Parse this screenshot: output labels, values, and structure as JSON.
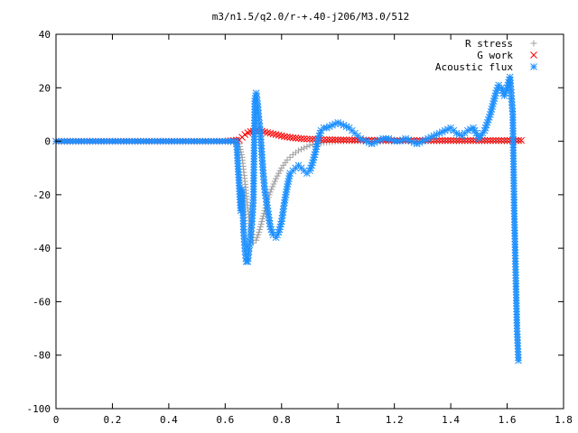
{
  "chart_data": {
    "type": "scatter",
    "title": "m3/n1.5/q2.0/r-+.40-j206/M3.0/512",
    "xlabel": "",
    "ylabel": "",
    "xlim": [
      0,
      1.8
    ],
    "ylim": [
      -100,
      40
    ],
    "xticks": [
      "0",
      "0.2",
      "0.4",
      "0.6",
      "0.8",
      "1",
      "1.2",
      "1.4",
      "1.6",
      "1.8"
    ],
    "yticks": [
      "40",
      "20",
      "0",
      "-20",
      "-40",
      "-60",
      "-80",
      "-100"
    ],
    "grid": false,
    "legend_position": "top-right",
    "series": [
      {
        "name": "R stress",
        "marker": "plus",
        "color": "#a0a0a0",
        "x": [
          0.0,
          0.1,
          0.2,
          0.3,
          0.4,
          0.5,
          0.6,
          0.65,
          0.66,
          0.67,
          0.68,
          0.69,
          0.7,
          0.71,
          0.72,
          0.73,
          0.74,
          0.75,
          0.76,
          0.78,
          0.8,
          0.82,
          0.84,
          0.86,
          0.88,
          0.9,
          0.92,
          0.95,
          1.0,
          1.1,
          1.2,
          1.3,
          1.4,
          1.5,
          1.6,
          1.65
        ],
        "y": [
          0,
          0,
          0,
          0,
          0,
          0,
          0,
          -1,
          -6,
          -15,
          -25,
          -33,
          -38,
          -37,
          -34,
          -30,
          -26,
          -22,
          -19,
          -14,
          -10,
          -7,
          -5,
          -3.5,
          -2.5,
          -1.5,
          -1,
          -0.5,
          0,
          0,
          0,
          0,
          0,
          0,
          0,
          0
        ]
      },
      {
        "name": "G work",
        "marker": "cross",
        "color": "#ff0000",
        "x": [
          0.0,
          0.1,
          0.2,
          0.3,
          0.4,
          0.5,
          0.6,
          0.65,
          0.66,
          0.67,
          0.68,
          0.69,
          0.7,
          0.71,
          0.72,
          0.73,
          0.74,
          0.76,
          0.78,
          0.8,
          0.82,
          0.84,
          0.86,
          0.88,
          0.9,
          0.92,
          0.95,
          1.0,
          1.1,
          1.2,
          1.3,
          1.4,
          1.5,
          1.6,
          1.65
        ],
        "y": [
          0,
          0,
          0,
          0,
          0,
          0,
          0,
          0.5,
          1.5,
          2.5,
          3.2,
          3.6,
          3.8,
          4.0,
          4.0,
          3.8,
          3.5,
          3.0,
          2.5,
          2.0,
          1.6,
          1.3,
          1.1,
          0.9,
          0.8,
          0.7,
          0.6,
          0.5,
          0.4,
          0.3,
          0.3,
          0.3,
          0.3,
          0.3,
          0.3
        ]
      },
      {
        "name": "Acoustic flux",
        "marker": "star",
        "color": "#1e90ff",
        "x": [
          0.0,
          0.05,
          0.1,
          0.15,
          0.2,
          0.25,
          0.3,
          0.35,
          0.4,
          0.45,
          0.5,
          0.55,
          0.6,
          0.64,
          0.655,
          0.66,
          0.665,
          0.67,
          0.675,
          0.68,
          0.685,
          0.69,
          0.695,
          0.7,
          0.705,
          0.71,
          0.715,
          0.72,
          0.725,
          0.73,
          0.735,
          0.74,
          0.75,
          0.76,
          0.77,
          0.78,
          0.79,
          0.8,
          0.81,
          0.82,
          0.83,
          0.84,
          0.85,
          0.86,
          0.87,
          0.88,
          0.89,
          0.9,
          0.91,
          0.92,
          0.93,
          0.94,
          0.95,
          0.96,
          0.98,
          1.0,
          1.02,
          1.04,
          1.06,
          1.08,
          1.1,
          1.12,
          1.14,
          1.16,
          1.18,
          1.2,
          1.22,
          1.24,
          1.26,
          1.28,
          1.3,
          1.32,
          1.34,
          1.36,
          1.38,
          1.4,
          1.42,
          1.44,
          1.46,
          1.48,
          1.5,
          1.52,
          1.54,
          1.55,
          1.56,
          1.57,
          1.58,
          1.59,
          1.6,
          1.605,
          1.61,
          1.615,
          1.62,
          1.625,
          1.63,
          1.635,
          1.64
        ],
        "y": [
          0,
          0,
          0,
          0,
          0,
          0,
          0,
          0,
          0,
          0,
          0,
          0,
          0,
          0,
          -26,
          -18,
          -33,
          -40,
          -45,
          -45,
          -40,
          -36,
          -30,
          -22,
          15,
          18,
          14,
          8,
          3,
          -5,
          -12,
          -18,
          -25,
          -32,
          -35,
          -36,
          -34,
          -30,
          -23,
          -17,
          -12,
          -11,
          -10,
          -9,
          -10,
          -11,
          -12,
          -11,
          -8,
          -4,
          1,
          4,
          5,
          5,
          6,
          7,
          6,
          5,
          3,
          1,
          0,
          -1,
          0,
          1,
          1,
          0,
          0,
          1,
          0,
          -1,
          0,
          1,
          2,
          3,
          4,
          5,
          3,
          2,
          4,
          5,
          1,
          4,
          10,
          14,
          18,
          21,
          20,
          17,
          20,
          22,
          24,
          17,
          10,
          -26,
          -48,
          -70,
          -82
        ]
      }
    ]
  }
}
